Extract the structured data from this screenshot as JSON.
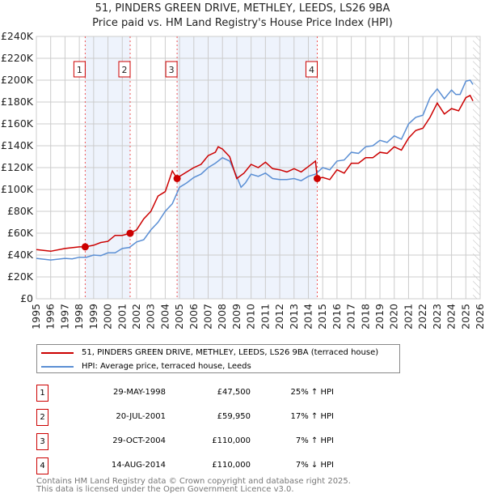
{
  "title_line1": "51, PINDERS GREEN DRIVE, METHLEY, LEEDS, LS26 9BA",
  "title_line2": "Price paid vs. HM Land Registry's House Price Index (HPI)",
  "chart_data": {
    "type": "line",
    "xlim": [
      1995,
      2026
    ],
    "ylim": [
      0,
      240000
    ],
    "y_ticks": [
      0,
      20000,
      40000,
      60000,
      80000,
      100000,
      120000,
      140000,
      160000,
      180000,
      200000,
      220000,
      240000
    ],
    "y_tick_labels": [
      "£0",
      "£20K",
      "£40K",
      "£60K",
      "£80K",
      "£100K",
      "£120K",
      "£140K",
      "£160K",
      "£180K",
      "£200K",
      "£220K",
      "£240K"
    ],
    "x_tick_labels": [
      "1995",
      "1996",
      "1997",
      "1998",
      "1999",
      "2000",
      "2001",
      "2002",
      "2003",
      "2004",
      "2005",
      "2006",
      "2007",
      "2008",
      "2009",
      "2010",
      "2011",
      "2012",
      "2013",
      "2014",
      "2015",
      "2016",
      "2017",
      "2018",
      "2019",
      "2020",
      "2021",
      "2022",
      "2023",
      "2024",
      "2025",
      "2026"
    ],
    "grid": true,
    "series": [
      {
        "name": "51, PINDERS GREEN DRIVE, METHLEY, LEEDS, LS26 9BA (terraced house)",
        "color": "#cc0000",
        "x": [
          1995,
          1996,
          1997,
          1998,
          1998.41,
          1999,
          1999.5,
          2000,
          2000.5,
          2001,
          2001.55,
          2002,
          2002.5,
          2003,
          2003.5,
          2004,
          2004.5,
          2004.83,
          2005,
          2005.5,
          2006,
          2006.5,
          2007,
          2007.5,
          2007.7,
          2008,
          2008.5,
          2009,
          2009.5,
          2010,
          2010.5,
          2011,
          2011.5,
          2012,
          2012.5,
          2013,
          2013.5,
          2014,
          2014.5,
          2014.62,
          2015,
          2015.5,
          2016,
          2016.5,
          2017,
          2017.5,
          2018,
          2018.5,
          2019,
          2019.5,
          2020,
          2020.5,
          2021,
          2021.5,
          2022,
          2022.5,
          2023,
          2023.5,
          2024,
          2024.5,
          2025,
          2025.3,
          2025.5
        ],
        "y": [
          45000,
          43500,
          46000,
          47500,
          47500,
          49000,
          51500,
          52500,
          58000,
          58000,
          59950,
          63000,
          73000,
          80000,
          94000,
          98000,
          117000,
          110000,
          112000,
          116000,
          120000,
          123000,
          131000,
          134000,
          139000,
          137000,
          130000,
          110000,
          115000,
          123000,
          120000,
          125000,
          119000,
          118000,
          116000,
          119000,
          116000,
          121000,
          126000,
          110000,
          111000,
          109000,
          118000,
          115000,
          124000,
          124000,
          129000,
          129000,
          134000,
          133000,
          139000,
          136000,
          147000,
          154000,
          156000,
          166000,
          179000,
          169000,
          174000,
          172000,
          184000,
          186000,
          181000
        ]
      },
      {
        "name": "HPI: Average price, terraced house, Leeds",
        "color": "#5b8fd4",
        "x": [
          1995,
          1996,
          1997,
          1997.5,
          1998,
          1998.5,
          1999,
          1999.5,
          2000,
          2000.5,
          2001,
          2001.5,
          2002,
          2002.5,
          2003,
          2003.5,
          2004,
          2004.5,
          2005,
          2005.5,
          2006,
          2006.5,
          2007,
          2007.5,
          2008,
          2008.5,
          2009,
          2009.3,
          2009.6,
          2010,
          2010.5,
          2011,
          2011.5,
          2012,
          2012.5,
          2013,
          2013.5,
          2014,
          2014.5,
          2015,
          2015.5,
          2016,
          2016.5,
          2017,
          2017.5,
          2018,
          2018.5,
          2019,
          2019.5,
          2020,
          2020.5,
          2021,
          2021.5,
          2022,
          2022.5,
          2023,
          2023.5,
          2024,
          2024.3,
          2024.6,
          2025,
          2025.3,
          2025.5
        ],
        "y": [
          37000,
          35500,
          37000,
          36500,
          38000,
          38000,
          40000,
          39500,
          42000,
          42000,
          46000,
          47000,
          52000,
          54000,
          63000,
          70000,
          80000,
          87000,
          102000,
          106000,
          111000,
          114000,
          120000,
          124000,
          129000,
          126000,
          112000,
          102000,
          106000,
          114000,
          112000,
          115000,
          110000,
          109000,
          109000,
          110000,
          108000,
          112000,
          114000,
          120000,
          118000,
          126000,
          127000,
          134000,
          133000,
          139000,
          140000,
          145000,
          143000,
          149000,
          146000,
          160000,
          166000,
          168000,
          184000,
          192000,
          183000,
          191000,
          187000,
          187000,
          199000,
          200000,
          196000
        ]
      }
    ],
    "sales": [
      {
        "label": "1",
        "x": 1998.41,
        "y": 47500
      },
      {
        "label": "2",
        "x": 2001.55,
        "y": 59950
      },
      {
        "label": "3",
        "x": 2004.83,
        "y": 110000
      },
      {
        "label": "4",
        "x": 2014.62,
        "y": 110000
      }
    ],
    "shaded_ranges": [
      [
        1998.41,
        2001.55
      ],
      [
        2004.83,
        2014.62
      ]
    ],
    "hatched_from": 2025.5
  },
  "legend": {
    "items": [
      "51, PINDERS GREEN DRIVE, METHLEY, LEEDS, LS26 9BA (terraced house)",
      "HPI: Average price, terraced house, Leeds"
    ]
  },
  "transactions": [
    {
      "num": "1",
      "date": "29-MAY-1998",
      "price": "£47,500",
      "hpi": "25% ↑ HPI"
    },
    {
      "num": "2",
      "date": "20-JUL-2001",
      "price": "£59,950",
      "hpi": "17% ↑ HPI"
    },
    {
      "num": "3",
      "date": "29-OCT-2004",
      "price": "£110,000",
      "hpi": "7% ↑ HPI"
    },
    {
      "num": "4",
      "date": "14-AUG-2014",
      "price": "£110,000",
      "hpi": "7% ↓ HPI"
    }
  ],
  "footer": {
    "line1": "Contains HM Land Registry data © Crown copyright and database right 2025.",
    "line2": "This data is licensed under the Open Government Licence v3.0."
  }
}
